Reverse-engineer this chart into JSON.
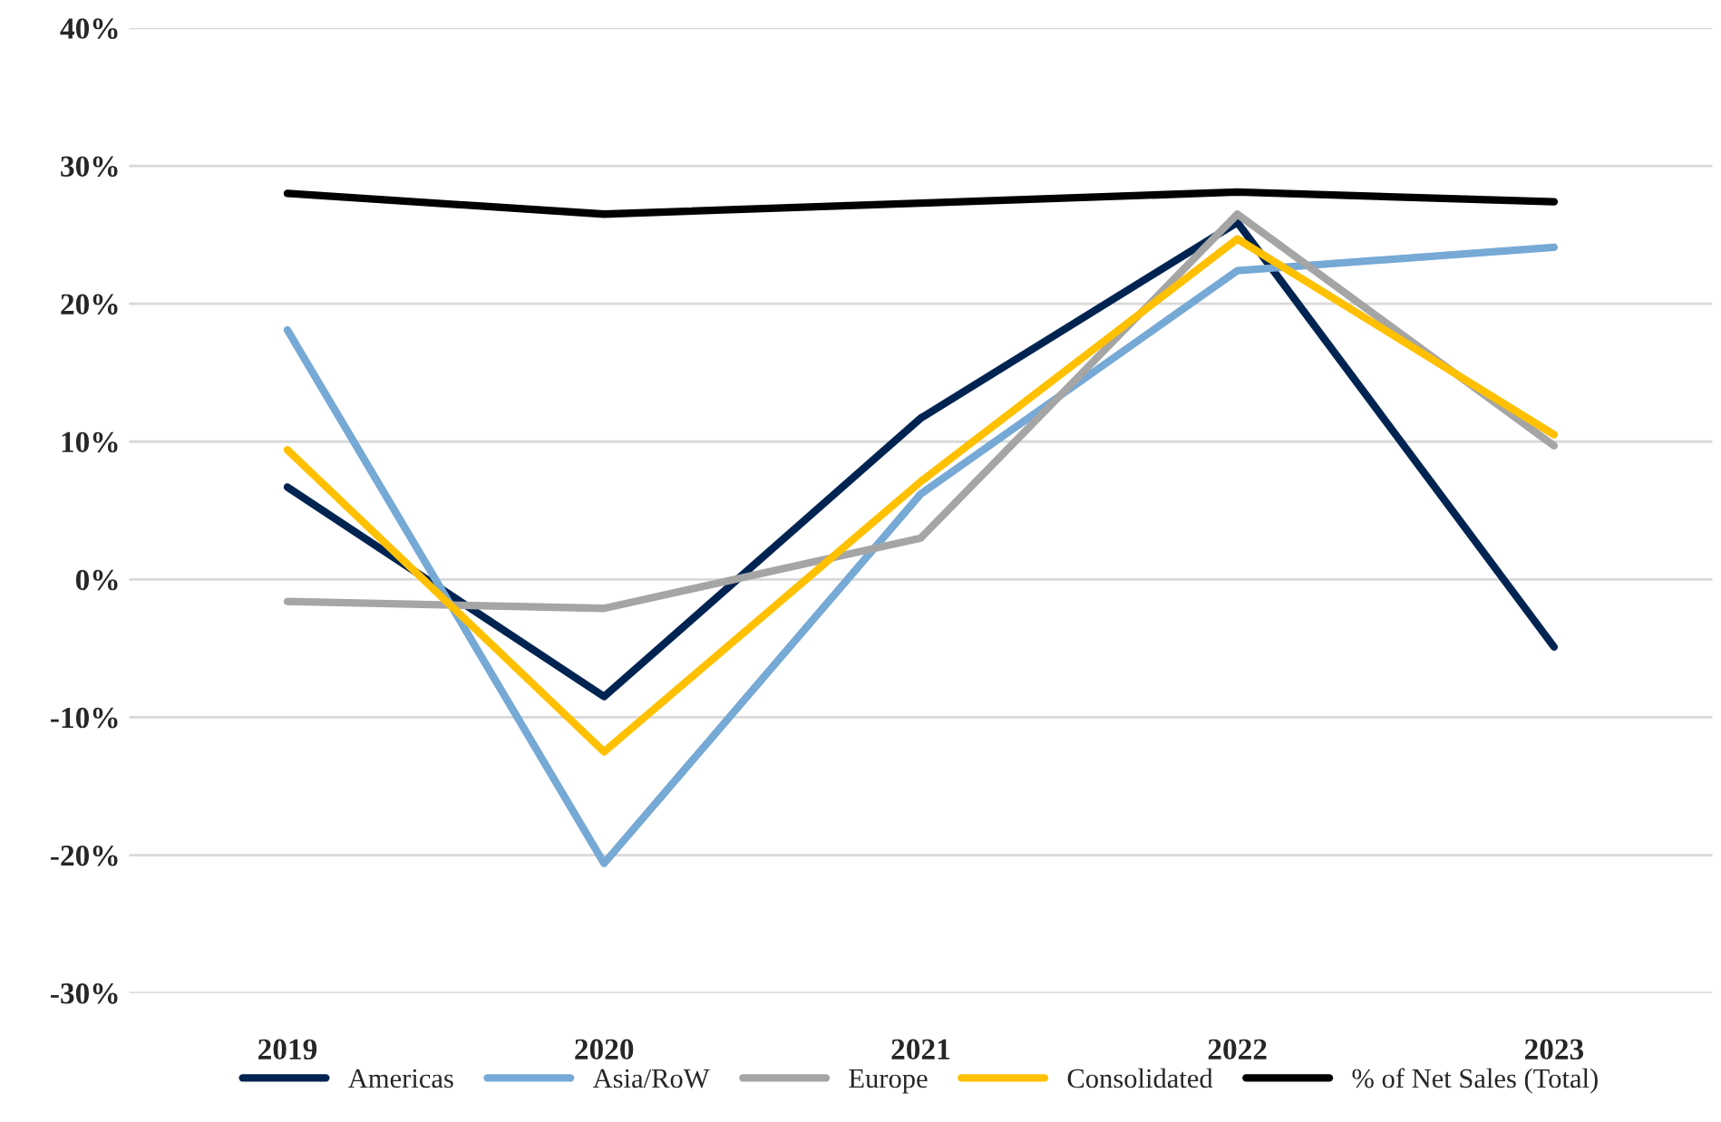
{
  "chart_data": {
    "type": "line",
    "categories": [
      "2019",
      "2020",
      "2021",
      "2022",
      "2023"
    ],
    "series": [
      {
        "name": "Americas",
        "color": "#002451",
        "values": [
          6.7,
          -8.5,
          11.7,
          25.9,
          -4.9
        ]
      },
      {
        "name": "Asia/RoW",
        "color": "#76a9d5",
        "values": [
          18.1,
          -20.6,
          6.2,
          22.4,
          24.1
        ]
      },
      {
        "name": "Europe",
        "color": "#a5a5a5",
        "values": [
          -1.6,
          -2.1,
          3.0,
          26.5,
          9.7
        ]
      },
      {
        "name": "Consolidated",
        "color": "#ffc000",
        "values": [
          9.4,
          -12.5,
          7.1,
          24.7,
          10.5
        ]
      },
      {
        "name": "% of Net Sales (Total)",
        "color": "#000000",
        "values": [
          28.0,
          26.5,
          27.3,
          28.1,
          27.4
        ]
      }
    ],
    "ylim": [
      -30,
      40
    ],
    "yticks": [
      {
        "value": -30,
        "label": "-30%"
      },
      {
        "value": -20,
        "label": "-20%"
      },
      {
        "value": -10,
        "label": "-10%"
      },
      {
        "value": 0,
        "label": "0%"
      },
      {
        "value": 10,
        "label": "10%"
      },
      {
        "value": 20,
        "label": "20%"
      },
      {
        "value": 30,
        "label": "30%"
      },
      {
        "value": 40,
        "label": "40%"
      }
    ],
    "grid": "y",
    "legend": "bottom",
    "marker": "none",
    "line_style": "solid"
  }
}
